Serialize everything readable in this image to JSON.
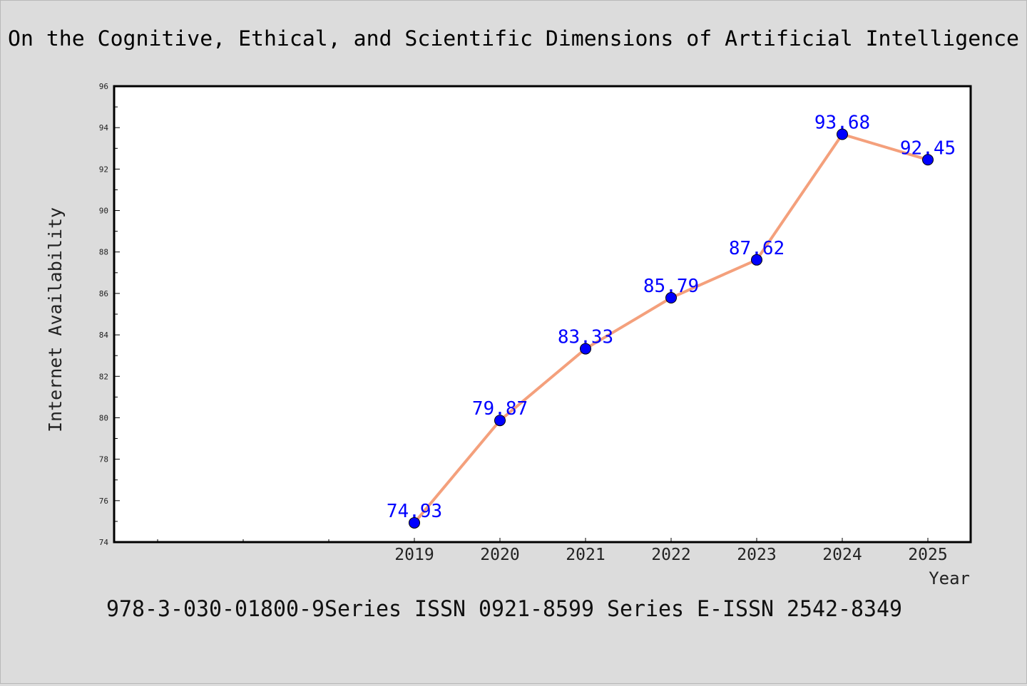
{
  "chart_data": {
    "type": "line",
    "title": "On the Cognitive, Ethical, and Scientific Dimensions of Artificial Intelligence",
    "xlabel": "Year",
    "ylabel": "Internet Availability",
    "categories": [
      "2019",
      "2020",
      "2021",
      "2022",
      "2023",
      "2024",
      "2025"
    ],
    "series": [
      {
        "values": [
          74.93,
          79.87,
          83.33,
          85.79,
          87.62,
          93.68,
          92.45
        ]
      }
    ],
    "data_labels": [
      "74.93",
      "79.87",
      "83.33",
      "85.79",
      "87.62",
      "93.68",
      "92.45"
    ],
    "ylim": [
      74,
      96
    ],
    "yticks": [
      "74",
      "76",
      "78",
      "80",
      "82",
      "84",
      "86",
      "88",
      "90",
      "92",
      "94",
      "96"
    ],
    "grid": false,
    "legend": "none",
    "colors": {
      "line": "#f4a07c",
      "marker": "#0000ff",
      "label": "#0000ff",
      "plot_bg": "#ffffff",
      "page_bg": "#dcdcdc"
    }
  },
  "footer": {
    "text": "978-3-030-01800-9Series ISSN 0921-8599 Series E-ISSN 2542-8349"
  }
}
